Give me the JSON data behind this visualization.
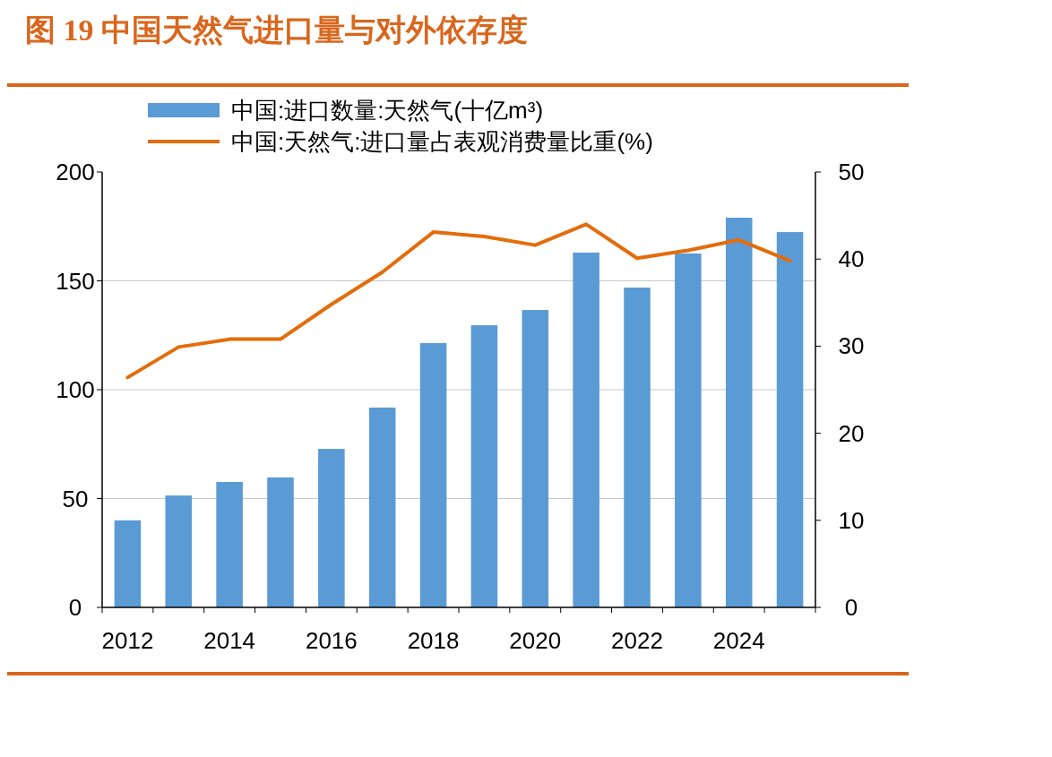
{
  "chart_data": {
    "type": "bar",
    "title": "图 19 中国天然气进口量与对外依存度",
    "categories": [
      "2012",
      null,
      "2014",
      null,
      "2016",
      null,
      "2018",
      null,
      "2020",
      null,
      "2022",
      null,
      "2024",
      null
    ],
    "series": [
      {
        "name": "中国:进口数量:天然气(十亿m³)",
        "color": "#5b9bd5",
        "values": [
          40,
          51.4,
          57.6,
          59.7,
          72.8,
          91.8,
          121.4,
          129.6,
          136.6,
          163,
          146.9,
          162.6,
          179,
          172.4
        ]
      },
      {
        "name": "中国:天然气:进口量占表观消费量比重(%)",
        "type": "line",
        "axis": "y2",
        "color": "#e46c0a",
        "values": [
          26.4,
          29.9,
          30.8,
          30.8,
          34.8,
          38.5,
          43.1,
          42.6,
          41.6,
          44.0,
          40.1,
          41.0,
          42.2,
          39.8
        ]
      }
    ],
    "ylim": [
      0,
      200
    ],
    "yticks": [
      0,
      50,
      100,
      150,
      200
    ],
    "y2lim": [
      0,
      50
    ],
    "y2ticks": [
      0,
      10,
      20,
      30,
      40,
      50
    ],
    "grid": "y",
    "legend": "top",
    "marker": "none",
    "line_style": "solid"
  }
}
